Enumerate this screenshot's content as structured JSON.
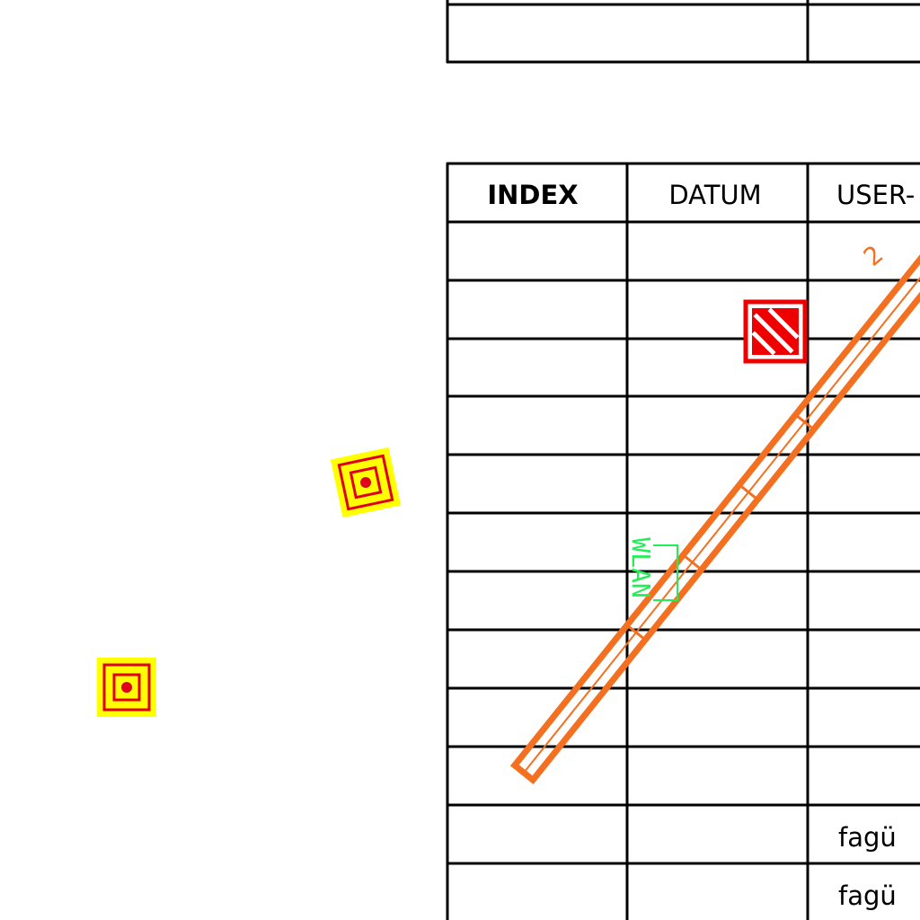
{
  "title_block": {
    "columns": {
      "index": "INDEX",
      "date": "DATUM",
      "user": "USER-"
    },
    "rows": [
      {
        "index": "",
        "date": "",
        "user": ""
      },
      {
        "index": "",
        "date": "",
        "user": ""
      },
      {
        "index": "",
        "date": "",
        "user": ""
      },
      {
        "index": "",
        "date": "",
        "user": ""
      },
      {
        "index": "",
        "date": "",
        "user": ""
      },
      {
        "index": "",
        "date": "",
        "user": ""
      },
      {
        "index": "",
        "date": "",
        "user": ""
      },
      {
        "index": "",
        "date": "",
        "user": ""
      },
      {
        "index": "",
        "date": "",
        "user": ""
      },
      {
        "index": "",
        "date": "",
        "user": ""
      },
      {
        "index": "",
        "date": "",
        "user": "fagü"
      },
      {
        "index": "",
        "date": "",
        "user": "fagü"
      }
    ]
  },
  "symbols": {
    "wlan_label": "WLAN",
    "cable_tray_label": "2"
  },
  "colors": {
    "line": "#000000",
    "cable_tray": "#f37021",
    "wlan": "#22ee55",
    "detector_fill": "#ffff00",
    "detector_stroke": "#e0001b",
    "fire_symbol": "#ee0000"
  }
}
